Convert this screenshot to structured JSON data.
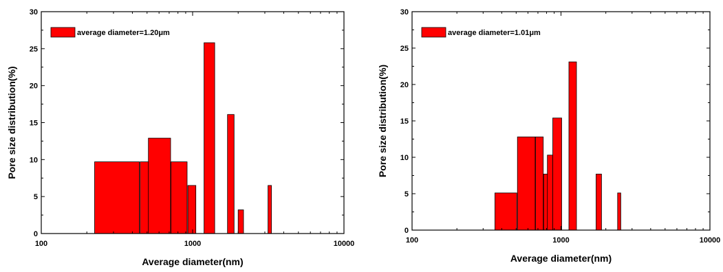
{
  "colors": {
    "bar": "#ff0000",
    "axis": "#000000",
    "bar_edge": "#000000"
  },
  "chart_data": [
    {
      "type": "bar",
      "xscale": "log",
      "xlim": [
        100,
        10000
      ],
      "ylim": [
        0,
        30
      ],
      "xticks": [
        "100",
        "1000",
        "10000"
      ],
      "yticks": [
        "0",
        "5",
        "10",
        "15",
        "20",
        "25",
        "30"
      ],
      "xlabel": "Average diameter(nm)",
      "ylabel": "Pore size distribution(%)",
      "legend": {
        "label": "average diameter=1.20μm",
        "placement": "top-left"
      },
      "grid": false,
      "bars": [
        {
          "x0": 225,
          "x1": 445,
          "value": 9.7
        },
        {
          "x0": 450,
          "x1": 665,
          "value": 9.7
        },
        {
          "x0": 510,
          "x1": 715,
          "value": 12.9
        },
        {
          "x0": 720,
          "x1": 920,
          "value": 9.7
        },
        {
          "x0": 930,
          "x1": 1050,
          "value": 6.5
        },
        {
          "x0": 1190,
          "x1": 1400,
          "value": 25.8
        },
        {
          "x0": 1700,
          "x1": 1880,
          "value": 16.1
        },
        {
          "x0": 2000,
          "x1": 2170,
          "value": 3.2
        },
        {
          "x0": 3150,
          "x1": 3320,
          "value": 6.5
        }
      ]
    },
    {
      "type": "bar",
      "xscale": "log",
      "xlim": [
        100,
        10000
      ],
      "ylim": [
        0,
        30
      ],
      "xticks": [
        "100",
        "1000",
        "10000"
      ],
      "yticks": [
        "0",
        "5",
        "10",
        "15",
        "20",
        "25",
        "30"
      ],
      "xlabel": "Average diameter(nm)",
      "ylabel": "Pore size distribution(%)",
      "legend": {
        "label": "average diameter=1.01μm",
        "placement": "top-left"
      },
      "grid": false,
      "bars": [
        {
          "x0": 360,
          "x1": 505,
          "value": 5.1
        },
        {
          "x0": 510,
          "x1": 670,
          "value": 12.8
        },
        {
          "x0": 675,
          "x1": 760,
          "value": 12.8
        },
        {
          "x0": 765,
          "x1": 840,
          "value": 7.7
        },
        {
          "x0": 810,
          "x1": 880,
          "value": 10.3
        },
        {
          "x0": 880,
          "x1": 1010,
          "value": 15.4
        },
        {
          "x0": 1130,
          "x1": 1270,
          "value": 23.1
        },
        {
          "x0": 1720,
          "x1": 1870,
          "value": 7.7
        },
        {
          "x0": 2400,
          "x1": 2520,
          "value": 5.1
        }
      ]
    }
  ]
}
